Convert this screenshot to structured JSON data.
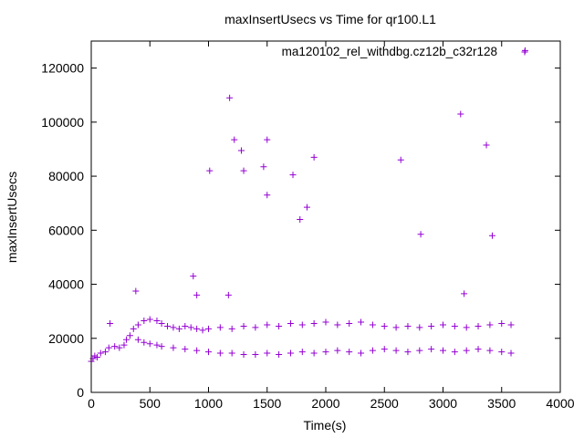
{
  "chart_data": {
    "type": "scatter",
    "title": "maxInsertUsecs vs Time for qr100.L1",
    "xlabel": "Time(s)",
    "ylabel": "maxInsertUsecs",
    "xlim": [
      0,
      4000
    ],
    "ylim": [
      0,
      130000
    ],
    "xticks": [
      0,
      500,
      1000,
      1500,
      2000,
      2500,
      3000,
      3500,
      4000
    ],
    "yticks": [
      0,
      20000,
      40000,
      60000,
      80000,
      100000,
      120000
    ],
    "xtick_labels": [
      "0",
      "500",
      "1000",
      "1500",
      "2000",
      "2500",
      "3000",
      "3500",
      "4000"
    ],
    "ytick_labels": [
      "0",
      "20000",
      "40000",
      "60000",
      "80000",
      "100000",
      "120000"
    ],
    "grid": false,
    "legend_position": "top-right",
    "marker": "plus",
    "colors": {
      "series": "#9400d3",
      "axes": "#000000",
      "background": "#ffffff"
    },
    "series": [
      {
        "name": "ma120102_rel_withdbg.cz12b_c32r128",
        "points": [
          [
            0,
            11500
          ],
          [
            15,
            12500
          ],
          [
            30,
            13500
          ],
          [
            50,
            13000
          ],
          [
            80,
            14500
          ],
          [
            120,
            15000
          ],
          [
            150,
            16500
          ],
          [
            200,
            17000
          ],
          [
            240,
            16500
          ],
          [
            280,
            17500
          ],
          [
            300,
            19500
          ],
          [
            330,
            21000
          ],
          [
            360,
            23500
          ],
          [
            400,
            25000
          ],
          [
            450,
            26500
          ],
          [
            500,
            27000
          ],
          [
            560,
            26500
          ],
          [
            600,
            25500
          ],
          [
            650,
            24500
          ],
          [
            700,
            24000
          ],
          [
            750,
            23500
          ],
          [
            800,
            24500
          ],
          [
            850,
            24000
          ],
          [
            900,
            23500
          ],
          [
            950,
            23000
          ],
          [
            1000,
            23500
          ],
          [
            1100,
            24000
          ],
          [
            1200,
            23500
          ],
          [
            1300,
            24500
          ],
          [
            1400,
            24000
          ],
          [
            1500,
            25000
          ],
          [
            1600,
            24500
          ],
          [
            1700,
            25500
          ],
          [
            1800,
            25000
          ],
          [
            1900,
            25500
          ],
          [
            2000,
            26000
          ],
          [
            2100,
            25000
          ],
          [
            2200,
            25500
          ],
          [
            2300,
            26000
          ],
          [
            2400,
            25000
          ],
          [
            2500,
            24500
          ],
          [
            2600,
            24000
          ],
          [
            2700,
            24500
          ],
          [
            2800,
            24000
          ],
          [
            2900,
            24500
          ],
          [
            3000,
            25000
          ],
          [
            3100,
            24500
          ],
          [
            3200,
            24000
          ],
          [
            3300,
            24500
          ],
          [
            3400,
            25000
          ],
          [
            3500,
            25500
          ],
          [
            3580,
            25000
          ],
          [
            400,
            19500
          ],
          [
            450,
            18500
          ],
          [
            500,
            18000
          ],
          [
            560,
            17500
          ],
          [
            600,
            17000
          ],
          [
            700,
            16500
          ],
          [
            800,
            16000
          ],
          [
            900,
            15500
          ],
          [
            1000,
            15000
          ],
          [
            1100,
            14500
          ],
          [
            1200,
            14500
          ],
          [
            1300,
            14000
          ],
          [
            1400,
            14000
          ],
          [
            1500,
            14500
          ],
          [
            1600,
            14000
          ],
          [
            1700,
            14500
          ],
          [
            1800,
            15000
          ],
          [
            1900,
            14500
          ],
          [
            2000,
            15000
          ],
          [
            2100,
            15500
          ],
          [
            2200,
            15000
          ],
          [
            2300,
            14500
          ],
          [
            2400,
            15500
          ],
          [
            2500,
            16000
          ],
          [
            2600,
            15500
          ],
          [
            2700,
            15000
          ],
          [
            2800,
            15500
          ],
          [
            2900,
            16000
          ],
          [
            3000,
            15500
          ],
          [
            3100,
            15000
          ],
          [
            3200,
            15500
          ],
          [
            3300,
            16000
          ],
          [
            3400,
            15500
          ],
          [
            3500,
            15000
          ],
          [
            3580,
            14500
          ],
          [
            160,
            25500
          ],
          [
            380,
            37500
          ],
          [
            870,
            43000
          ],
          [
            1010,
            82000
          ],
          [
            1180,
            109000
          ],
          [
            1220,
            93500
          ],
          [
            1280,
            89500
          ],
          [
            1300,
            82000
          ],
          [
            1470,
            83500
          ],
          [
            1500,
            93500
          ],
          [
            1500,
            73000
          ],
          [
            1720,
            80500
          ],
          [
            1780,
            64000
          ],
          [
            1840,
            68500
          ],
          [
            1900,
            87000
          ],
          [
            2640,
            86000
          ],
          [
            2810,
            58500
          ],
          [
            3150,
            103000
          ],
          [
            3180,
            36500
          ],
          [
            3370,
            91500
          ],
          [
            3420,
            58000
          ],
          [
            900,
            36000
          ],
          [
            1170,
            36000
          ],
          [
            3700,
            126500
          ]
        ]
      }
    ]
  }
}
